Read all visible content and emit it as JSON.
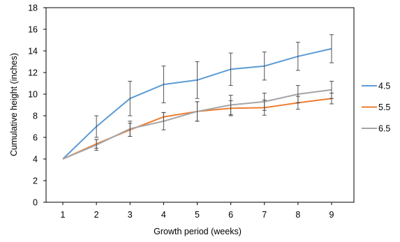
{
  "chart_data": {
    "type": "line",
    "title": "",
    "xlabel": "Growth period (weeks)",
    "ylabel": "Cumulative height (inches)",
    "x": [
      1,
      2,
      3,
      4,
      5,
      6,
      7,
      8,
      9
    ],
    "xlim": [
      1,
      9
    ],
    "ylim": [
      0,
      18
    ],
    "yticks": [
      0,
      2,
      4,
      6,
      8,
      10,
      12,
      14,
      16,
      18
    ],
    "grid": false,
    "legend_position": "right",
    "series": [
      {
        "name": "4.5",
        "color": "#5B9BD5",
        "values": [
          4.0,
          7.0,
          9.6,
          10.9,
          11.3,
          12.3,
          12.6,
          13.5,
          14.2
        ],
        "error": [
          0,
          1.0,
          1.6,
          1.7,
          1.7,
          1.5,
          1.3,
          1.3,
          1.3
        ]
      },
      {
        "name": "5.5",
        "color": "#ED7D31",
        "values": [
          4.0,
          5.4,
          6.7,
          7.9,
          8.4,
          8.7,
          8.75,
          9.2,
          9.6
        ],
        "error": [
          0,
          0.4,
          0.6,
          0.4,
          0.9,
          0.7,
          0.7,
          0.6,
          0.5
        ]
      },
      {
        "name": "6.5",
        "color": "#A5A5A5",
        "values": [
          4.0,
          5.3,
          6.8,
          7.5,
          8.4,
          9.0,
          9.3,
          10.0,
          10.4
        ],
        "error": [
          0,
          0.5,
          0.7,
          0.8,
          0.9,
          0.9,
          0.8,
          0.8,
          0.8
        ]
      }
    ]
  }
}
